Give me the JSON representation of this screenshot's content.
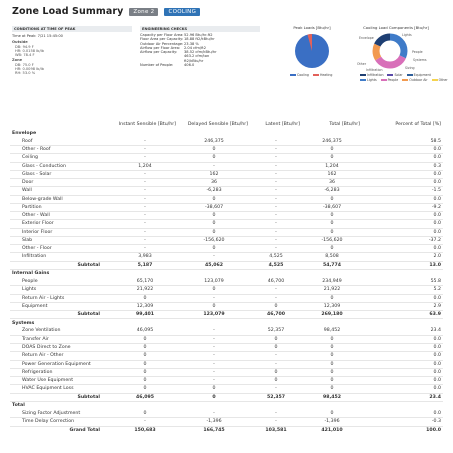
{
  "header": {
    "title": "Zone Load Summary",
    "zone_badge": "Zone 2",
    "mode_badge": "COOLING"
  },
  "conditions": {
    "heading": "CONDITIONS AT TIME OF PEAK",
    "time_at_peak": "Time at Peak: 7/21 15:45:00",
    "outside_label": "Outside",
    "outside_db": "DB: 94.9 F",
    "outside_hr": "HR: 0.0158 lb/lb",
    "outside_wb": "WB: 78.4 F",
    "zone_label": "Zone",
    "zone_db": "DB: 75.0 F",
    "zone_hr": "HR: 0.0098 lb/lb",
    "zone_rh": "RH: 53.0 %"
  },
  "engineering": {
    "heading": "ENGINEERING CHECKS",
    "rows": [
      {
        "label": "Capacity per Floor Area:",
        "value": "52.96 Btu/hr-ft2"
      },
      {
        "label": "Floor Area per Capacity:",
        "value": "18.88 ft2/kBtu/hr"
      },
      {
        "label": "Outdoor Air Percentage:",
        "value": "23.38 %"
      },
      {
        "label": "Airflow per Floor Area:",
        "value": "2.04 cfm/ft2"
      },
      {
        "label": "Airflow per Capacity:",
        "value": "38.52 cfm/kBtu/hr"
      },
      {
        "label": "",
        "value": "463.2 cfm/ton"
      },
      {
        "label": "",
        "value": "ft2/kBtu/hr"
      },
      {
        "label": "Number of People:",
        "value": "406.0"
      }
    ]
  },
  "peak_chart": {
    "title": "Peak Loads [Btu/hr]",
    "legend": [
      {
        "label": "Cooling",
        "color": "#3a6fc4"
      },
      {
        "label": "Heating",
        "color": "#e2615a"
      }
    ],
    "colors": {
      "cooling": "#3a6fc4",
      "heating": "#e2615a"
    }
  },
  "components_chart": {
    "title": "Cooling Load Components [Btu/hr]",
    "labels": [
      "Lights",
      "Envelope",
      "People",
      "Systems",
      "Other",
      "Infiltration",
      "Sizing"
    ],
    "legend": [
      {
        "label": "Infiltration",
        "color": "#1e3f73"
      },
      {
        "label": "Solar",
        "color": "#5a4aa8"
      },
      {
        "label": "Equipment",
        "color": "#2e5f9a"
      },
      {
        "label": "Lights",
        "color": "#3f7bc8"
      },
      {
        "label": "People",
        "color": "#d86fb9"
      },
      {
        "label": "Outdoor Air",
        "color": "#f29a4f"
      },
      {
        "label": "Other",
        "color": "#f5d34e"
      }
    ]
  },
  "table": {
    "headers": [
      "Instant Sensible [Btu/hr]",
      "Delayed Sensible [Btu/hr]",
      "Latent [Btu/hr]",
      "Total [Btu/hr]",
      "Percent of Total [%]"
    ],
    "groups": [
      {
        "name": "Envelope",
        "rows": [
          {
            "label": "Roof",
            "v": [
              "-",
              "246,375",
              "-",
              "246,375",
              "58.5"
            ]
          },
          {
            "label": "Other - Roof",
            "v": [
              "-",
              "0",
              "-",
              "0",
              "0.0"
            ]
          },
          {
            "label": "Ceiling",
            "v": [
              "-",
              "0",
              "-",
              "0",
              "0.0"
            ]
          },
          {
            "label": "Glass - Conduction",
            "v": [
              "1,204",
              "-",
              "-",
              "1,204",
              "0.3"
            ]
          },
          {
            "label": "Glass - Solar",
            "v": [
              "-",
              "162",
              "-",
              "162",
              "0.0"
            ]
          },
          {
            "label": "Door",
            "v": [
              "-",
              "36",
              "-",
              "36",
              "0.0"
            ]
          },
          {
            "label": "Wall",
            "v": [
              "-",
              "-6,283",
              "-",
              "-6,283",
              "-1.5"
            ]
          },
          {
            "label": "Below-grade Wall",
            "v": [
              "-",
              "0",
              "-",
              "0",
              "0.0"
            ]
          },
          {
            "label": "Partition",
            "v": [
              "-",
              "-38,607",
              "-",
              "-38,607",
              "-9.2"
            ]
          },
          {
            "label": "Other - Wall",
            "v": [
              "-",
              "0",
              "-",
              "0",
              "0.0"
            ]
          },
          {
            "label": "Exterior Floor",
            "v": [
              "-",
              "0",
              "-",
              "0",
              "0.0"
            ]
          },
          {
            "label": "Interior Floor",
            "v": [
              "-",
              "0",
              "-",
              "0",
              "0.0"
            ]
          },
          {
            "label": "Slab",
            "v": [
              "-",
              "-156,620",
              "-",
              "-156,620",
              "-37.2"
            ]
          },
          {
            "label": "Other - Floor",
            "v": [
              "-",
              "0",
              "-",
              "0",
              "0.0"
            ]
          },
          {
            "label": "Infiltration",
            "v": [
              "3,983",
              "-",
              "4,525",
              "8,508",
              "2.0"
            ]
          }
        ],
        "subtotal": [
          "5,187",
          "45,062",
          "4,525",
          "54,774",
          "13.0"
        ]
      },
      {
        "name": "Internal Gains",
        "rows": [
          {
            "label": "People",
            "v": [
              "65,170",
              "123,079",
              "46,700",
              "234,949",
              "55.8"
            ]
          },
          {
            "label": "Lights",
            "v": [
              "21,922",
              "0",
              "-",
              "21,922",
              "5.2"
            ]
          },
          {
            "label": "Return Air - Lights",
            "v": [
              "0",
              "-",
              "-",
              "0",
              "0.0"
            ]
          },
          {
            "label": "Equipment",
            "v": [
              "12,309",
              "0",
              "0",
              "12,309",
              "2.9"
            ]
          }
        ],
        "subtotal": [
          "99,401",
          "123,079",
          "46,700",
          "269,180",
          "63.9"
        ]
      },
      {
        "name": "Systems",
        "rows": [
          {
            "label": "Zone Ventilation",
            "v": [
              "46,095",
              "-",
              "52,357",
              "98,452",
              "23.4"
            ]
          },
          {
            "label": "Transfer Air",
            "v": [
              "0",
              "-",
              "0",
              "0",
              "0.0"
            ]
          },
          {
            "label": "DOAS Direct to Zone",
            "v": [
              "0",
              "-",
              "0",
              "0",
              "0.0"
            ]
          },
          {
            "label": "Return Air - Other",
            "v": [
              "0",
              "-",
              "-",
              "0",
              "0.0"
            ]
          },
          {
            "label": "Power Generation Equipment",
            "v": [
              "0",
              "-",
              "-",
              "0",
              "0.0"
            ]
          },
          {
            "label": "Refrigeration",
            "v": [
              "0",
              "-",
              "0",
              "0",
              "0.0"
            ]
          },
          {
            "label": "Water Use Equipment",
            "v": [
              "0",
              "-",
              "0",
              "0",
              "0.0"
            ]
          },
          {
            "label": "HVAC Equipment Loss",
            "v": [
              "0",
              "0",
              "-",
              "0",
              "0.0"
            ]
          }
        ],
        "subtotal": [
          "46,095",
          "0",
          "52,357",
          "98,452",
          "23.4"
        ]
      },
      {
        "name": "Total",
        "rows": [
          {
            "label": "Sizing Factor Adjustment",
            "v": [
              "0",
              "-",
              "-",
              "0",
              "0.0"
            ]
          },
          {
            "label": "Time Delay Correction",
            "v": [
              "-",
              "-1,396",
              "-",
              "-1,396",
              "-0.3"
            ]
          }
        ],
        "grand_total": [
          "150,683",
          "166,745",
          "103,581",
          "421,010",
          "100.0"
        ]
      }
    ],
    "subtotal_label": "Subtotal",
    "grand_total_label": "Grand Total"
  }
}
